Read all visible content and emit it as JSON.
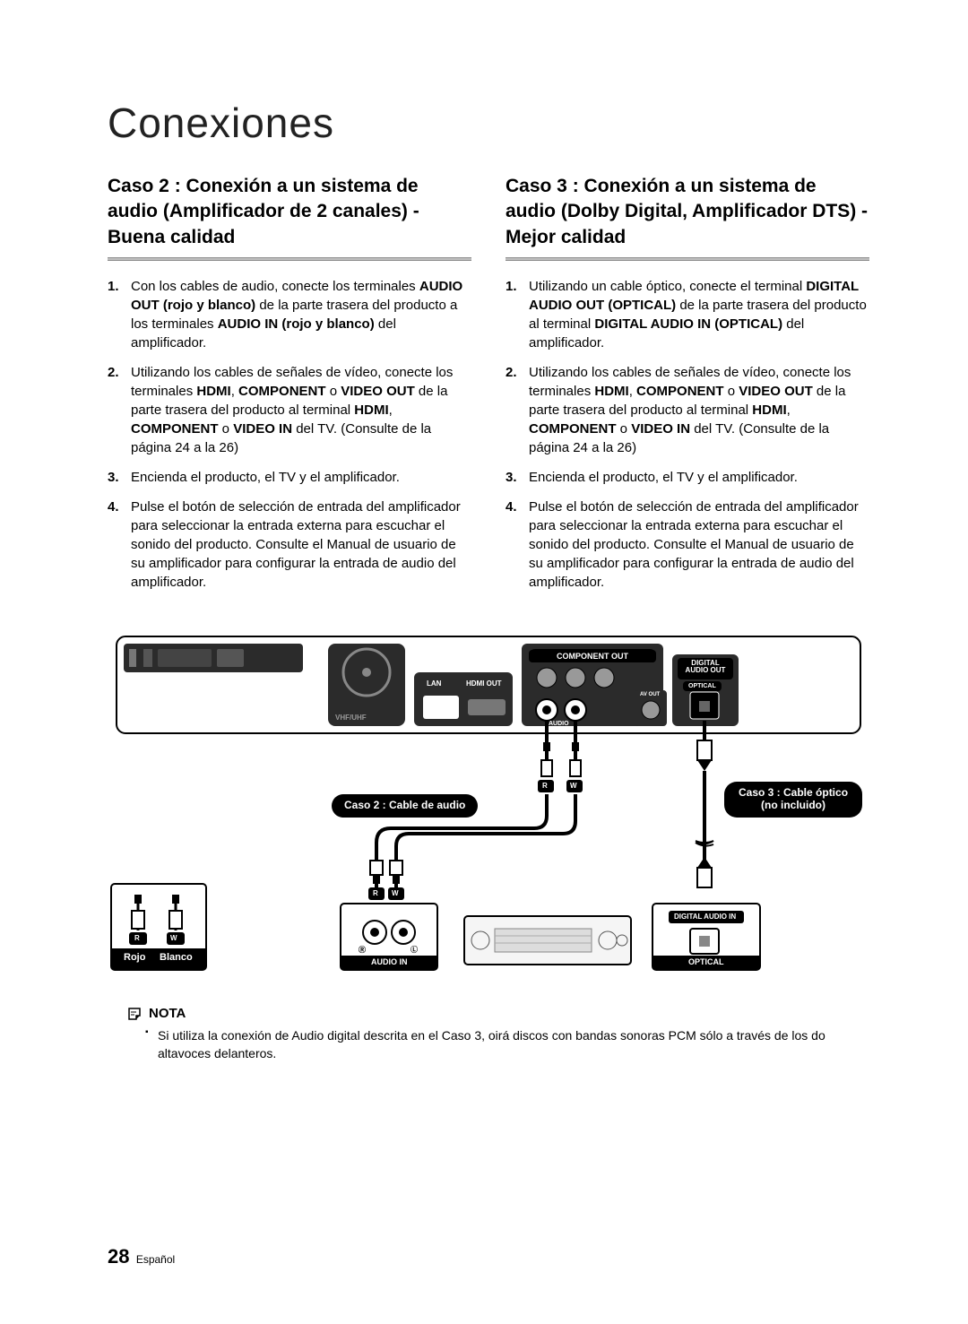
{
  "title": "Conexiones",
  "left": {
    "heading": "Caso 2 : Conexión a un sistema de audio (Amplificador de 2 canales) - Buena calidad",
    "steps": [
      "Con los cables de audio, conecte los terminales <b>AUDIO OUT (rojo y blanco)</b> de la parte trasera del producto a los terminales <b>AUDIO IN (rojo y blanco)</b> del amplificador.",
      "Utilizando los cables de señales de vídeo, conecte los terminales <b>HDMI</b>, <b>COMPONENT</b> o <b>VIDEO OUT</b> de la parte trasera del producto al terminal <b>HDMI</b>, <b>COMPONENT</b> o <b>VIDEO IN</b> del TV. (Consulte de la página 24 a la 26)",
      "Encienda el producto, el TV y el amplificador.",
      "Pulse el botón de selección de entrada del amplificador para seleccionar la entrada externa para escuchar el sonido del producto. Consulte el Manual de usuario de su amplificador para configurar la entrada de audio del amplificador."
    ]
  },
  "right": {
    "heading": "Caso 3 : Conexión a un sistema de audio (Dolby Digital, Amplificador DTS) - Mejor calidad",
    "steps": [
      "Utilizando un cable óptico, conecte el terminal <b>DIGITAL AUDIO OUT (OPTICAL)</b> de la parte trasera del producto al terminal <b>DIGITAL AUDIO IN (OPTICAL)</b> del amplificador.",
      "Utilizando los cables de señales de vídeo, conecte los terminales <b>HDMI</b>, <b>COMPONENT</b> o <b>VIDEO OUT</b> de la parte trasera del producto al terminal <b>HDMI</b>, <b>COMPONENT</b> o <b>VIDEO IN</b> del TV. (Consulte de la página 24 a la 26)",
      "Encienda el producto, el TV y el amplificador.",
      "Pulse el botón de selección de entrada del amplificador para seleccionar la entrada externa para escuchar el sonido del producto. Consulte el Manual de usuario de su amplificador para configurar la entrada de audio del amplificador."
    ]
  },
  "diagram": {
    "device_top_labels": {
      "component_out": "COMPONENT OUT",
      "digital_audio_out": "DIGITAL AUDIO OUT",
      "optical": "OPTICAL",
      "lan": "LAN",
      "hdmi_out": "HDMI OUT",
      "av_out": "AV OUT",
      "audio": "AUDIO",
      "video": "VIDEO",
      "vhf_uhf": "VHF/UHF"
    },
    "labels": {
      "caso2": "Caso 2 : Cable de audio",
      "caso3_line1": "Caso 3 : Cable óptico",
      "caso3_line2": "(no incluido)",
      "rojo": "Rojo",
      "blanco": "Blanco",
      "audio_in": "AUDIO IN",
      "digital_audio_in": "DIGITAL AUDIO IN",
      "optical2": "OPTICAL",
      "r": "R",
      "w": "W",
      "l_circ": "Ⓛ",
      "r_circ": "Ⓡ",
      "l_chip": "L",
      "r_chip": "R"
    },
    "colors": {
      "stroke": "#000000",
      "fill_dark": "#2b2b2b",
      "fill_amp": "#bdbdbd",
      "fill_white": "#ffffff"
    }
  },
  "note": {
    "head": "NOTA",
    "items": [
      "Si utiliza la conexión de Audio digital descrita en el Caso 3, oirá discos con bandas sonoras PCM sólo a través de los do altavoces delanteros."
    ]
  },
  "footer": {
    "page": "28",
    "lang": "Español"
  }
}
